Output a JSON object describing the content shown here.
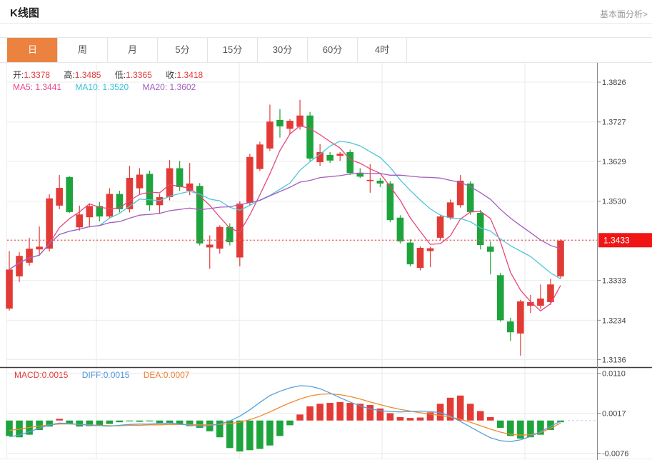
{
  "header": {
    "title": "K线图",
    "link": "基本面分析>"
  },
  "tabs": {
    "items": [
      "日",
      "周",
      "月",
      "5分",
      "15分",
      "30分",
      "60分",
      "4时"
    ],
    "active_index": 0
  },
  "info_bar": {
    "open_label": "开:",
    "open": "1.3378",
    "high_label": "高:",
    "high": "1.3485",
    "low_label": "低:",
    "low": "1.3365",
    "close_label": "收:",
    "close": "1.3418"
  },
  "ma_bar": {
    "ma5_label": "MA5:",
    "ma5": "1.3441",
    "ma10_label": "MA10:",
    "ma10": "1.3520",
    "ma20_label": "MA20:",
    "ma20": "1.3602"
  },
  "macd_bar": {
    "macd_label": "MACD:",
    "macd": "0.0015",
    "diff_label": "DIFF:",
    "diff": "0.0015",
    "dea_label": "DEA:",
    "dea": "0.0007"
  },
  "colors": {
    "up": "#e23b36",
    "down": "#1ea43c",
    "tab_accent": "#ec823f",
    "price_tag_bg": "#f01414",
    "price_tag_text": "#ffffff",
    "current_price_line": "#f25555",
    "ma5": "#e8457e",
    "ma10": "#4fc4dc",
    "ma20": "#a45ebf",
    "diff_line": "#54a0dc",
    "dea_line": "#f08a2c",
    "grid": "#ebebeb",
    "vgrid": "#e8e8e8",
    "axis": "#888888",
    "divider": "#3c3c3c"
  },
  "chart_data": [
    {
      "type": "candlestick",
      "title": "K线图 (daily)",
      "legend": [
        "MA5",
        "MA10",
        "MA20"
      ],
      "ma_periods": [
        5,
        10,
        20
      ],
      "grid": true,
      "legend_position": "top-left",
      "y_ticks": [
        {
          "label": "1.3826",
          "value": 1.3826
        },
        {
          "label": "1.3727",
          "value": 1.3727
        },
        {
          "label": "1.3629",
          "value": 1.3629
        },
        {
          "label": "1.3530",
          "value": 1.353
        },
        {
          "label": "1.3433",
          "value": 1.3433,
          "highlight": true
        },
        {
          "label": "1.3333",
          "value": 1.3333
        },
        {
          "label": "1.3234",
          "value": 1.3234
        },
        {
          "label": "1.3136",
          "value": 1.3136
        }
      ],
      "ylim": [
        1.3126,
        1.3878
      ],
      "current_price": 1.3433,
      "current_price_label": "1.3433",
      "candles_format": [
        "open",
        "high",
        "low",
        "close"
      ],
      "candles": [
        [
          1.3263,
          1.3406,
          1.3258,
          1.336
        ],
        [
          1.3343,
          1.3403,
          1.3329,
          1.3394
        ],
        [
          1.3377,
          1.3439,
          1.337,
          1.3412
        ],
        [
          1.341,
          1.3467,
          1.3394,
          1.3417
        ],
        [
          1.3412,
          1.3547,
          1.3405,
          1.3537
        ],
        [
          1.3519,
          1.3595,
          1.351,
          1.3563
        ],
        [
          1.359,
          1.3592,
          1.3501,
          1.3503
        ],
        [
          1.3465,
          1.3519,
          1.3457,
          1.3497
        ],
        [
          1.349,
          1.3525,
          1.3465,
          1.3518
        ],
        [
          1.3518,
          1.3528,
          1.348,
          1.3492
        ],
        [
          1.3492,
          1.3562,
          1.3487,
          1.3548
        ],
        [
          1.3548,
          1.3556,
          1.3502,
          1.351
        ],
        [
          1.351,
          1.3618,
          1.3502,
          1.3588
        ],
        [
          1.3562,
          1.3612,
          1.3548,
          1.3596
        ],
        [
          1.3598,
          1.3606,
          1.3506,
          1.352
        ],
        [
          1.352,
          1.3548,
          1.3498,
          1.354
        ],
        [
          1.354,
          1.3632,
          1.3532,
          1.3612
        ],
        [
          1.3612,
          1.363,
          1.3556,
          1.3565
        ],
        [
          1.3556,
          1.3625,
          1.3545,
          1.3574
        ],
        [
          1.3568,
          1.3575,
          1.342,
          1.3425
        ],
        [
          1.3415,
          1.3445,
          1.3362,
          1.3422
        ],
        [
          1.3412,
          1.347,
          1.34,
          1.3466
        ],
        [
          1.3466,
          1.3475,
          1.342,
          1.3428
        ],
        [
          1.339,
          1.353,
          1.3368,
          1.3524
        ],
        [
          1.3526,
          1.3648,
          1.352,
          1.364
        ],
        [
          1.361,
          1.3678,
          1.3605,
          1.3671
        ],
        [
          1.3661,
          1.377,
          1.3655,
          1.3728
        ],
        [
          1.3732,
          1.3759,
          1.3688,
          1.3716
        ],
        [
          1.371,
          1.3734,
          1.3697,
          1.373
        ],
        [
          1.3715,
          1.3782,
          1.3708,
          1.3743
        ],
        [
          1.3743,
          1.3752,
          1.363,
          1.3636
        ],
        [
          1.3627,
          1.3672,
          1.3618,
          1.3652
        ],
        [
          1.3645,
          1.3652,
          1.3625,
          1.3631
        ],
        [
          1.3643,
          1.3652,
          1.363,
          1.3648
        ],
        [
          1.3652,
          1.3658,
          1.3595,
          1.36
        ],
        [
          1.36,
          1.3612,
          1.3588,
          1.3591
        ],
        [
          1.358,
          1.3622,
          1.3551,
          1.3583
        ],
        [
          1.3581,
          1.3588,
          1.3565,
          1.3574
        ],
        [
          1.3574,
          1.358,
          1.3478,
          1.3483
        ],
        [
          1.3489,
          1.3495,
          1.3425,
          1.343
        ],
        [
          1.3427,
          1.3435,
          1.3368,
          1.3373
        ],
        [
          1.3364,
          1.3418,
          1.3358,
          1.3414
        ],
        [
          1.3406,
          1.3417,
          1.3366,
          1.3413
        ],
        [
          1.3439,
          1.3497,
          1.3433,
          1.3492
        ],
        [
          1.3489,
          1.3534,
          1.3484,
          1.3527
        ],
        [
          1.352,
          1.3595,
          1.3514,
          1.3581
        ],
        [
          1.3574,
          1.358,
          1.3496,
          1.3503
        ],
        [
          1.3501,
          1.3508,
          1.341,
          1.3421
        ],
        [
          1.3417,
          1.343,
          1.3348,
          1.3404
        ],
        [
          1.3346,
          1.3352,
          1.323,
          1.3234
        ],
        [
          1.3231,
          1.324,
          1.3183,
          1.3204
        ],
        [
          1.3201,
          1.3285,
          1.3146,
          1.3281
        ],
        [
          1.327,
          1.3297,
          1.3252,
          1.3279
        ],
        [
          1.327,
          1.3323,
          1.3262,
          1.3288
        ],
        [
          1.3279,
          1.3337,
          1.3272,
          1.3323
        ],
        [
          1.3343,
          1.3435,
          1.3338,
          1.3432
        ]
      ]
    },
    {
      "type": "macd",
      "title": "MACD (12,26,9)",
      "y_ticks": [
        {
          "label": "0.0110",
          "value": 0.011
        },
        {
          "label": "0.0017",
          "value": 0.0017
        },
        {
          "label": "-0.0076",
          "value": -0.0076
        }
      ],
      "ylim": [
        -0.0091,
        0.0125
      ],
      "histogram": [
        -0.0036,
        -0.0039,
        -0.0033,
        -0.0022,
        -0.0014,
        0.0004,
        -0.0008,
        -0.0014,
        -0.0013,
        -0.0011,
        -0.0008,
        -0.0004,
        -0.0002,
        -0.0003,
        -0.0002,
        -0.0006,
        -0.0007,
        -0.0009,
        -0.0013,
        -0.0017,
        -0.0025,
        -0.0039,
        -0.0064,
        -0.0072,
        -0.0069,
        -0.0066,
        -0.0058,
        -0.0036,
        -0.0011,
        0.0014,
        0.0033,
        0.0039,
        0.0041,
        0.0043,
        0.0041,
        0.0039,
        0.0036,
        0.0028,
        0.0017,
        0.0008,
        0.0006,
        0.0007,
        0.0019,
        0.0039,
        0.0053,
        0.0058,
        0.0039,
        0.0022,
        0.0008,
        -0.0017,
        -0.0036,
        -0.0042,
        -0.0039,
        -0.0033,
        -0.0022,
        -0.0004
      ],
      "diff": [
        -0.0038,
        -0.0034,
        -0.0026,
        -0.0018,
        -0.001,
        -0.0006,
        -0.0007,
        -0.0009,
        -0.0011,
        -0.0012,
        -0.0013,
        -0.0011,
        -0.0009,
        -0.0008,
        -0.0008,
        -0.0007,
        -0.0006,
        -0.0008,
        -0.0011,
        -0.0013,
        -0.0012,
        -0.0008,
        -0.0001,
        0.001,
        0.0025,
        0.0042,
        0.0058,
        0.0068,
        0.0076,
        0.0081,
        0.008,
        0.0074,
        0.0064,
        0.0053,
        0.0043,
        0.0034,
        0.0027,
        0.0023,
        0.0021,
        0.002,
        0.0021,
        0.0022,
        0.0021,
        0.0018,
        0.001,
        -0.0002,
        -0.0015,
        -0.0028,
        -0.004,
        -0.0047,
        -0.0049,
        -0.0045,
        -0.0037,
        -0.0026,
        -0.0013,
        -0.0002
      ],
      "dea": [
        -0.0023,
        -0.002,
        -0.0016,
        -0.0013,
        -0.001,
        -0.0008,
        -0.0008,
        -0.0009,
        -0.001,
        -0.0011,
        -0.0012,
        -0.0012,
        -0.0011,
        -0.0011,
        -0.001,
        -0.001,
        -0.0009,
        -0.0009,
        -0.0009,
        -0.001,
        -0.001,
        -0.0009,
        -0.0007,
        -0.0004,
        0.0002,
        0.001,
        0.002,
        0.0031,
        0.0041,
        0.005,
        0.0057,
        0.0061,
        0.0062,
        0.006,
        0.0056,
        0.005,
        0.0043,
        0.0037,
        0.0031,
        0.0026,
        0.0022,
        0.0018,
        0.0015,
        0.0012,
        0.0008,
        0.0003,
        -0.0004,
        -0.0012,
        -0.002,
        -0.0027,
        -0.0032,
        -0.0034,
        -0.0033,
        -0.0028,
        -0.0018,
        -0.0006
      ]
    }
  ]
}
